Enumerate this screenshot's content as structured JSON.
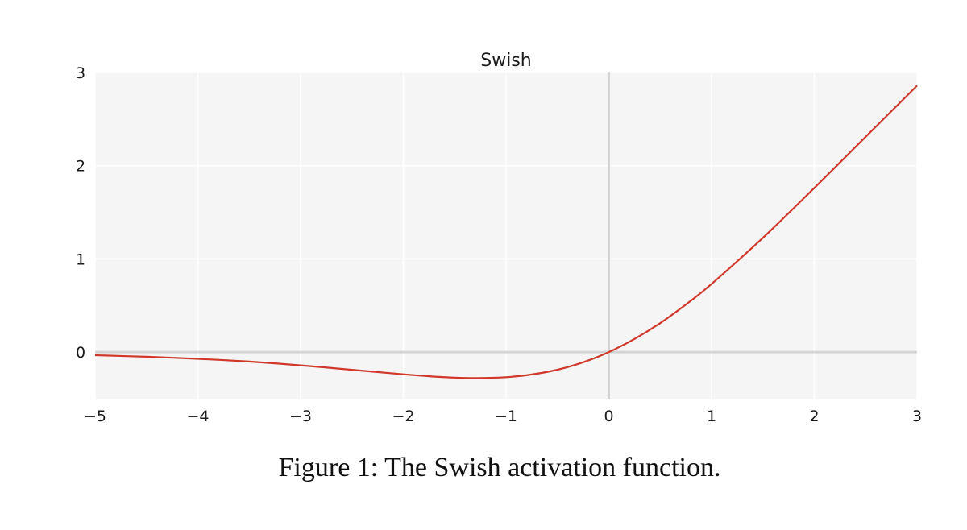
{
  "chart_data": {
    "type": "line",
    "title": "Swish",
    "xlabel": "",
    "ylabel": "",
    "xlim": [
      -5,
      3
    ],
    "ylim": [
      -0.5,
      3
    ],
    "x_ticks": [
      -5,
      -4,
      -3,
      -2,
      -1,
      0,
      1,
      2,
      3
    ],
    "x_tick_labels": [
      "−5",
      "−4",
      "−3",
      "−2",
      "−1",
      "0",
      "1",
      "2",
      "3"
    ],
    "y_ticks": [
      0,
      1,
      2,
      3
    ],
    "y_tick_labels": [
      "0",
      "1",
      "2",
      "3"
    ],
    "grid": true,
    "series": [
      {
        "color": "#d0382b",
        "x": [
          -5,
          -4.5,
          -4,
          -3.5,
          -3,
          -2.5,
          -2,
          -1.75,
          -1.5,
          -1.28,
          -1,
          -0.75,
          -0.5,
          -0.25,
          0,
          0.25,
          0.5,
          0.75,
          1,
          1.5,
          2,
          2.5,
          3
        ],
        "y": [
          -0.033,
          -0.05,
          -0.072,
          -0.102,
          -0.142,
          -0.19,
          -0.238,
          -0.259,
          -0.274,
          -0.278,
          -0.269,
          -0.24,
          -0.189,
          -0.109,
          0.0,
          0.141,
          0.311,
          0.51,
          0.731,
          1.227,
          1.762,
          2.31,
          2.858
        ]
      }
    ]
  },
  "colors": {
    "plot_background": "#f5f5f5",
    "grid": "#ffffff",
    "zero_axis": "#d4d4d4",
    "line": "#d0382b"
  },
  "caption": "Figure 1: The Swish activation function."
}
